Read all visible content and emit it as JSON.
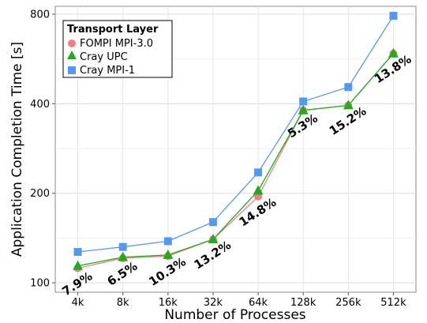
{
  "chart_data": {
    "type": "line",
    "xlabel": "Number of Processes",
    "ylabel": "Application Completion Time [s]",
    "y_scale": "log",
    "ylim": [
      93,
      850
    ],
    "y_ticks": [
      100,
      200,
      400,
      800
    ],
    "categories": [
      "4k",
      "8k",
      "16k",
      "32k",
      "64k",
      "128k",
      "256k",
      "512k"
    ],
    "legend": {
      "title": "Transport Layer",
      "placement": "top-left"
    },
    "series": [
      {
        "name": "FOMPI MPI-3.0",
        "color": "#f08080",
        "marker": "circle",
        "values": [
          112,
          121,
          123,
          140,
          195,
          380,
          395,
          590
        ]
      },
      {
        "name": "Cray UPC",
        "color": "#22aa22",
        "marker": "triangle",
        "values": [
          114,
          122,
          124,
          140,
          204,
          380,
          395,
          590
        ]
      },
      {
        "name": "Cray MPI-1",
        "color": "#5599ee",
        "marker": "square",
        "values": [
          127,
          132,
          138,
          160,
          235,
          407,
          455,
          790
        ]
      }
    ],
    "annotations": [
      "7.9%",
      "6.5%",
      "10.3%",
      "13.2%",
      "14.8%",
      "5.3%",
      "15.2%",
      "13.8%"
    ]
  }
}
